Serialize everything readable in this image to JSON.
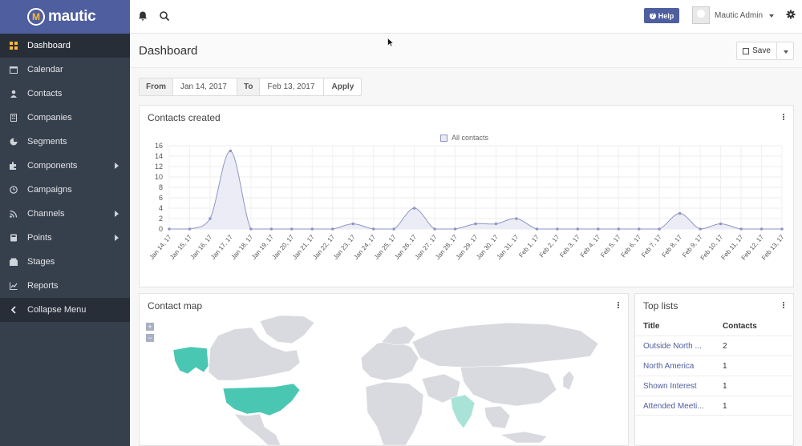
{
  "brand": {
    "name": "mautic"
  },
  "sidebar": {
    "items": [
      {
        "label": "Dashboard",
        "icon": "dashboard-icon",
        "active": true
      },
      {
        "label": "Calendar",
        "icon": "calendar-icon"
      },
      {
        "label": "Contacts",
        "icon": "user-icon"
      },
      {
        "label": "Companies",
        "icon": "building-icon"
      },
      {
        "label": "Segments",
        "icon": "pie-icon"
      },
      {
        "label": "Components",
        "icon": "puzzle-icon",
        "caret": true
      },
      {
        "label": "Campaigns",
        "icon": "clock-icon"
      },
      {
        "label": "Channels",
        "icon": "rss-icon",
        "caret": true
      },
      {
        "label": "Points",
        "icon": "calculator-icon",
        "caret": true
      },
      {
        "label": "Stages",
        "icon": "stages-icon"
      },
      {
        "label": "Reports",
        "icon": "line-chart-icon"
      }
    ],
    "collapse_label": "Collapse Menu"
  },
  "topbar": {
    "help_label": "Help",
    "user_name": "Mautic Admin"
  },
  "page": {
    "title": "Dashboard",
    "save_label": "Save"
  },
  "filter": {
    "from_label": "From",
    "from_value": "Jan 14, 2017",
    "to_label": "To",
    "to_value": "Feb 13, 2017",
    "apply_label": "Apply"
  },
  "contacts_created": {
    "title": "Contacts created",
    "chart_data": {
      "type": "area",
      "title": "",
      "xlabel": "",
      "ylabel": "",
      "ylim": [
        0,
        16
      ],
      "yticks": [
        0,
        2,
        4,
        6,
        8,
        10,
        12,
        14,
        16
      ],
      "grid": true,
      "legend_position": "top",
      "categories": [
        "Jan 14, 17",
        "Jan 15, 17",
        "Jan 16, 17",
        "Jan 17, 17",
        "Jan 18, 17",
        "Jan 19, 17",
        "Jan 20, 17",
        "Jan 21, 17",
        "Jan 22, 17",
        "Jan 23, 17",
        "Jan 24, 17",
        "Jan 25, 17",
        "Jan 26, 17",
        "Jan 27, 17",
        "Jan 28, 17",
        "Jan 29, 17",
        "Jan 30, 17",
        "Jan 31, 17",
        "Feb 1, 17",
        "Feb 2, 17",
        "Feb 3, 17",
        "Feb 4, 17",
        "Feb 5, 17",
        "Feb 6, 17",
        "Feb 7, 17",
        "Feb 8, 17",
        "Feb 9, 17",
        "Feb 10, 17",
        "Feb 11, 17",
        "Feb 12, 17",
        "Feb 13, 17"
      ],
      "series": [
        {
          "name": "All contacts",
          "values": [
            0,
            0,
            2,
            15,
            0,
            0,
            0,
            0,
            0,
            1,
            0,
            0,
            4,
            0,
            0,
            1,
            1,
            2,
            0,
            0,
            0,
            0,
            0,
            0,
            0,
            3,
            0,
            1,
            0,
            0,
            0
          ]
        }
      ],
      "colors": {
        "line": "#8e96c4",
        "fill": "#e9eaf4"
      }
    }
  },
  "contact_map": {
    "title": "Contact map",
    "zoom_in": "+",
    "zoom_out": "−"
  },
  "top_lists": {
    "title": "Top lists",
    "columns": [
      "Title",
      "Contacts"
    ],
    "rows": [
      {
        "title": "Outside North ...",
        "contacts": "2"
      },
      {
        "title": "North America",
        "contacts": "1"
      },
      {
        "title": "Shown Interest",
        "contacts": "1"
      },
      {
        "title": "Attended Meeti...",
        "contacts": "1"
      }
    ]
  },
  "colors": {
    "brand": "#4e5e9e",
    "sidebar": "#363f4c",
    "map_highlight": "#4ac7b3",
    "map_base": "#d8dadf"
  }
}
